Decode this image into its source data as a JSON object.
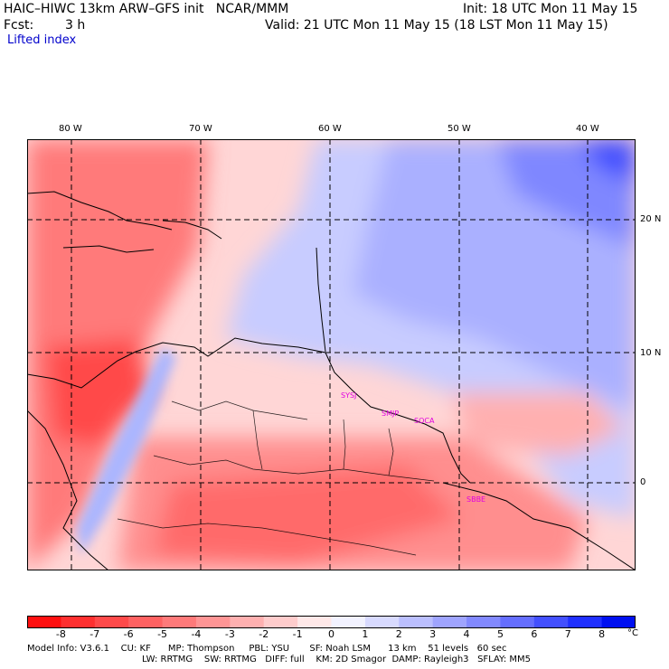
{
  "header": {
    "title": "HAIC–HIWC 13km ARW–GFS init   NCAR/MMM",
    "init": "Init: 18 UTC Mon 11 May 15",
    "fcst_label": "Fcst:",
    "fcst_value": "3 h",
    "valid": "Valid: 21 UTC Mon 11 May 15 (18 LST Mon 11 May 15)",
    "field": "Lifted index"
  },
  "axes": {
    "lon_labels": [
      "80 W",
      "70 W",
      "60 W",
      "50 W",
      "40 W"
    ],
    "lat_labels": [
      "20 N",
      "10 N",
      "0"
    ]
  },
  "stations": [
    "SYSJ",
    "SMJP",
    "SOCA",
    "SBBE"
  ],
  "colorbar": {
    "labels": [
      "-8",
      "-7",
      "-6",
      "-5",
      "-4",
      "-3",
      "-2",
      "-1",
      "0",
      "1",
      "2",
      "3",
      "4",
      "5",
      "6",
      "7",
      "8"
    ],
    "unit": "°C",
    "colors": [
      "#ff1010",
      "#ff3030",
      "#ff4a4a",
      "#ff6262",
      "#ff7a7a",
      "#ff9595",
      "#ffb0b0",
      "#ffcccc",
      "#ffe8e8",
      "#f2f2ff",
      "#d8daff",
      "#bbbfff",
      "#9fa4ff",
      "#8289ff",
      "#656eff",
      "#4350ff",
      "#2030ff",
      "#0010f0"
    ]
  },
  "model_info": {
    "line1": "Model Info: V3.6.1    CU: KF      MP: Thompson     PBL: YSU       SF: Noah LSM      13 km    51 levels   60 sec",
    "line2": "LW: RRTMG    SW: RRTMG   DIFF: full    KM: 2D Smagor  DAMP: Rayleigh3   SFLAY: MM5"
  }
}
